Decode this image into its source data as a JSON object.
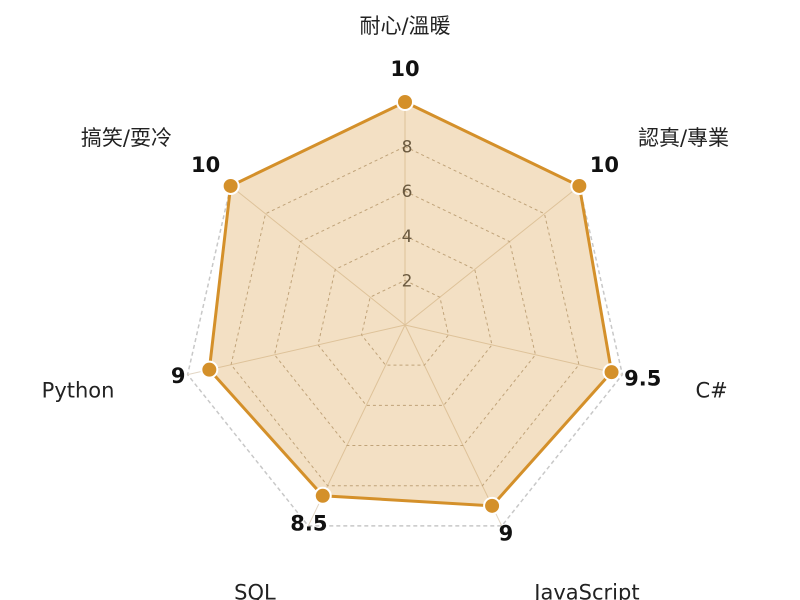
{
  "chart_data": {
    "type": "radar",
    "categories": [
      "耐心/溫暖",
      "認真/專業",
      "C#",
      "JavaScript",
      "SQL",
      "Python",
      "搞笑/耍冷"
    ],
    "series": [
      {
        "color": "#d4902a",
        "values": [
          10,
          10,
          9.5,
          9,
          8.5,
          9,
          10
        ]
      }
    ],
    "ylim": [
      0,
      10
    ],
    "yticks": [
      2,
      4,
      6,
      8
    ],
    "grid": true
  }
}
